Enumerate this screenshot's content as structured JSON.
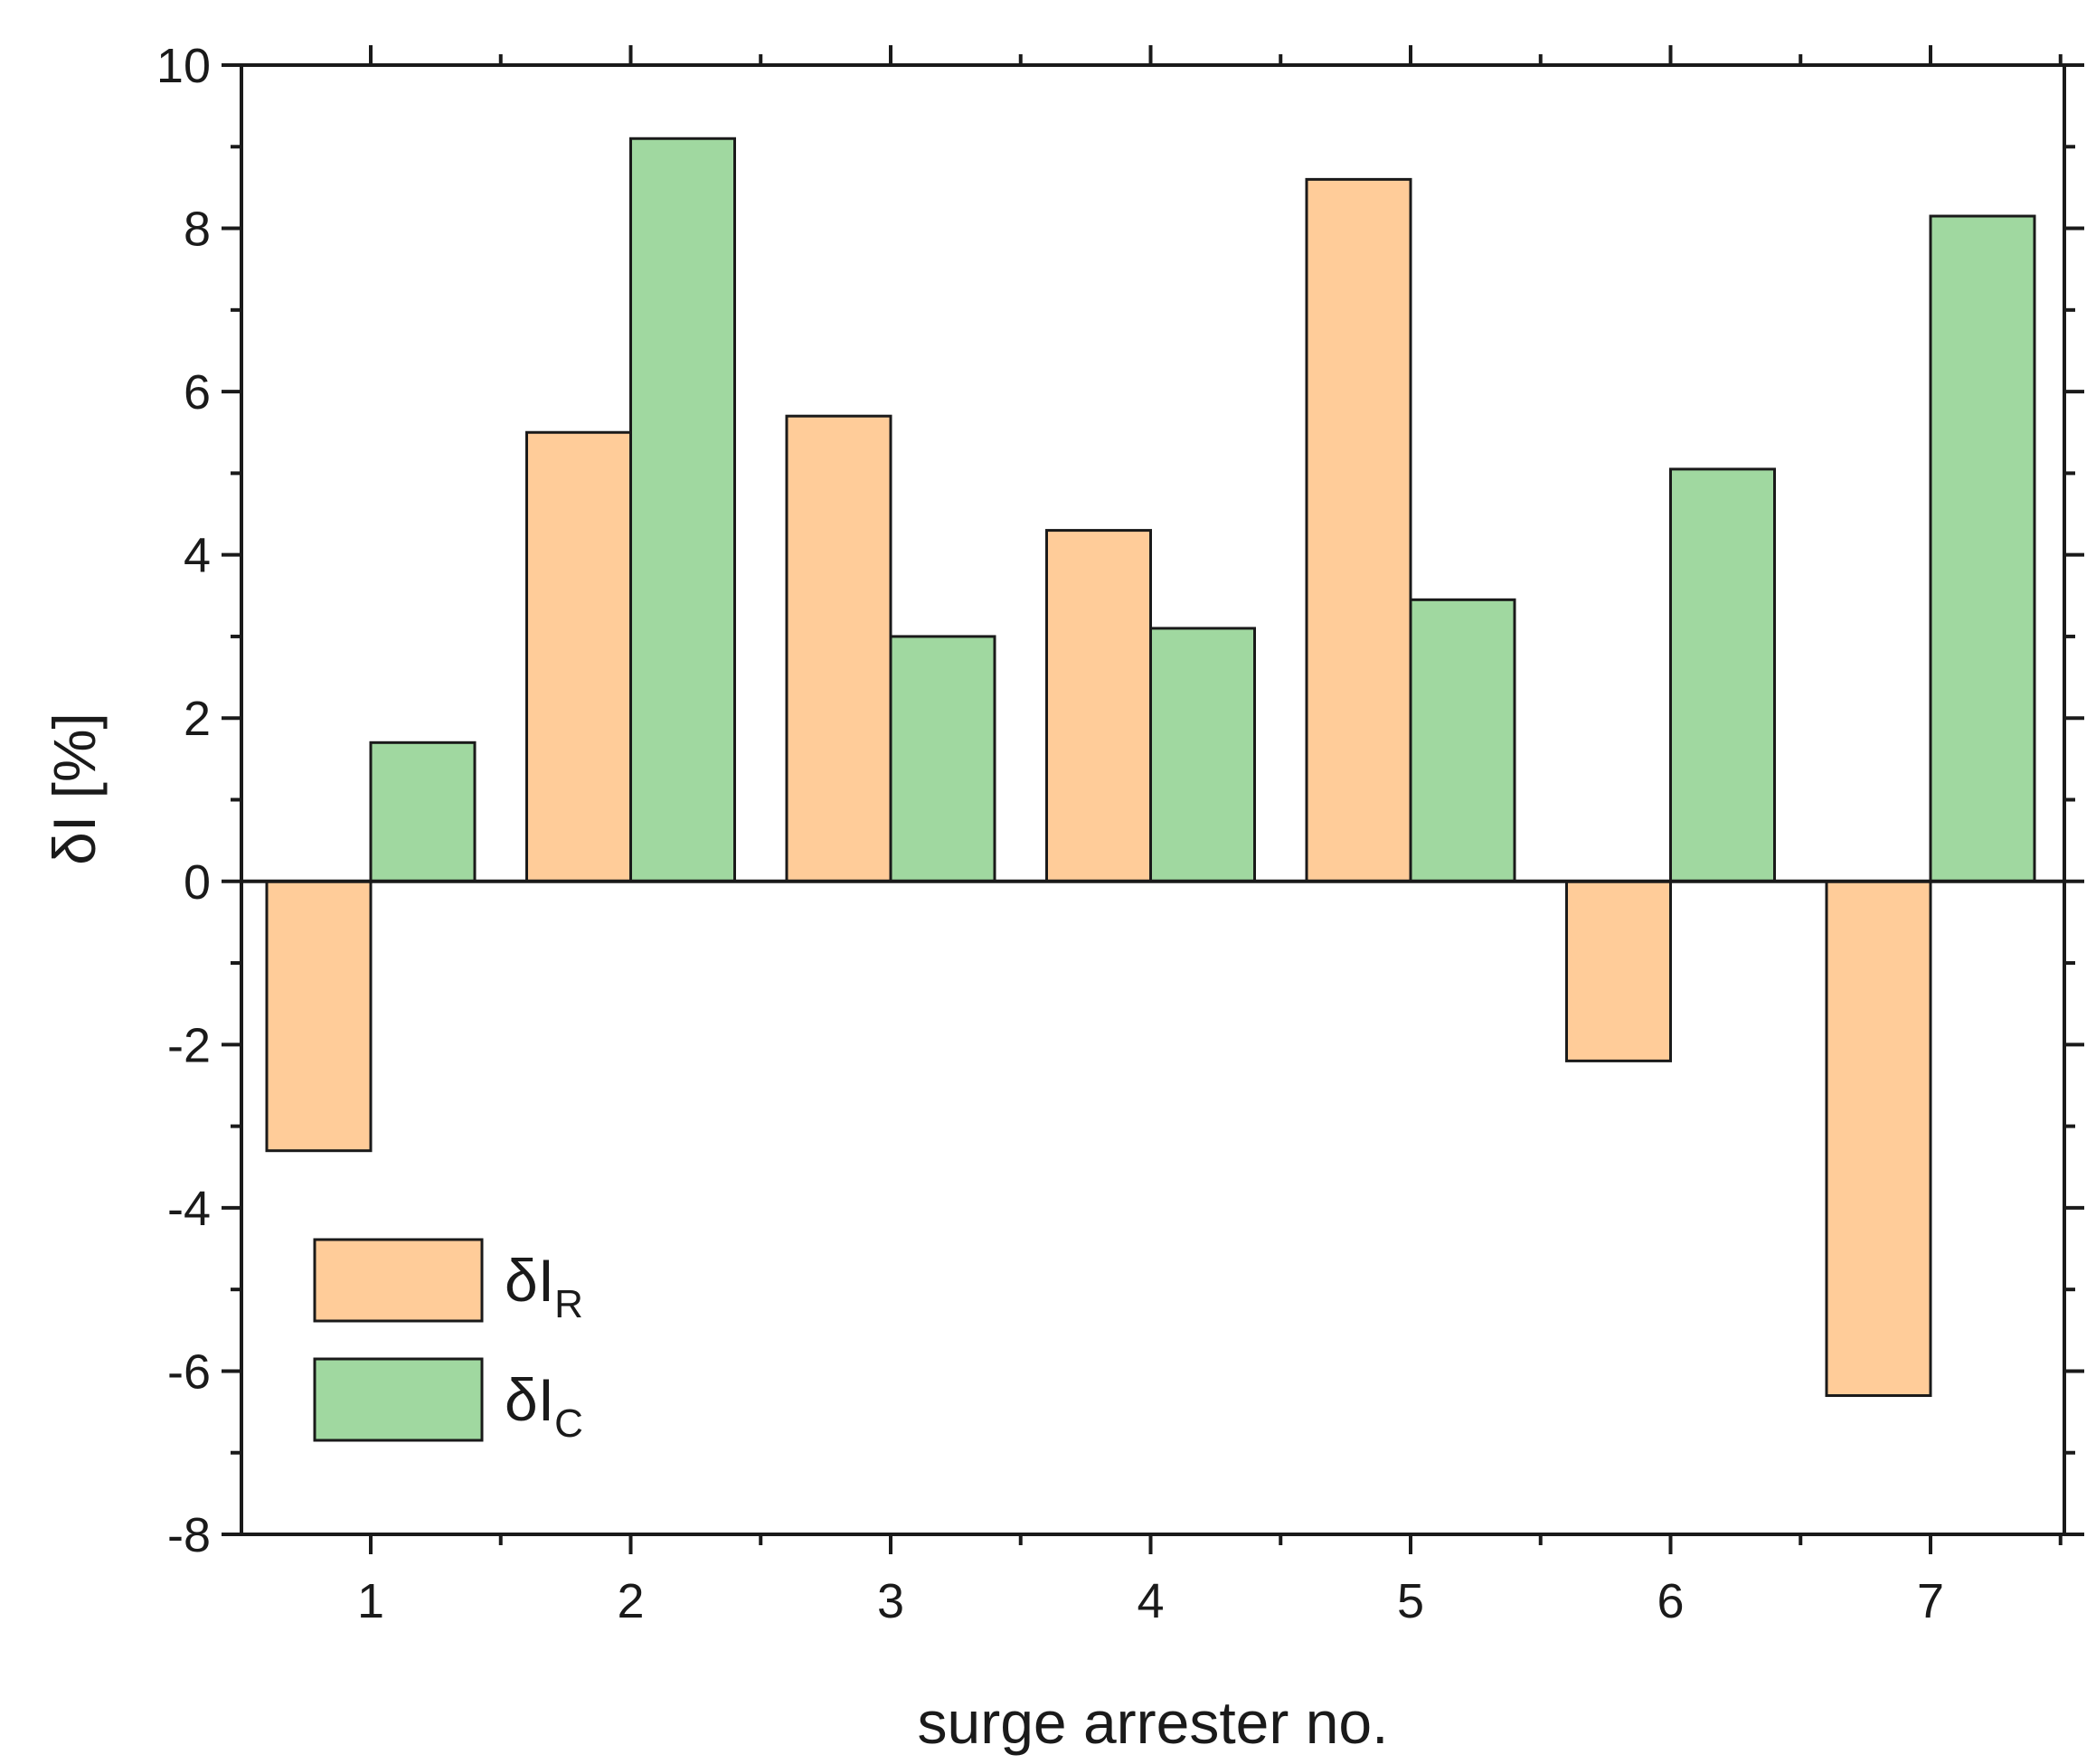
{
  "chart_data": {
    "type": "bar",
    "xlabel": "surge arrester no.",
    "ylabel": "δI [%]",
    "categories": [
      "1",
      "2",
      "3",
      "4",
      "5",
      "6",
      "7"
    ],
    "ylim": [
      -8,
      10
    ],
    "yticks": [
      "-8",
      "-6",
      "-4",
      "-2",
      "0",
      "2",
      "4",
      "6",
      "8",
      "10"
    ],
    "series": [
      {
        "name": "δI",
        "subscript": "R",
        "color": "#ffcc99",
        "values": [
          -3.3,
          5.5,
          5.7,
          4.3,
          8.6,
          -2.2,
          -6.3
        ]
      },
      {
        "name": "δI",
        "subscript": "C",
        "color": "#a0d8a0",
        "values": [
          1.7,
          9.1,
          3.0,
          3.1,
          3.45,
          5.05,
          8.15
        ]
      }
    ],
    "legend": "bottom-left",
    "grid": false
  }
}
